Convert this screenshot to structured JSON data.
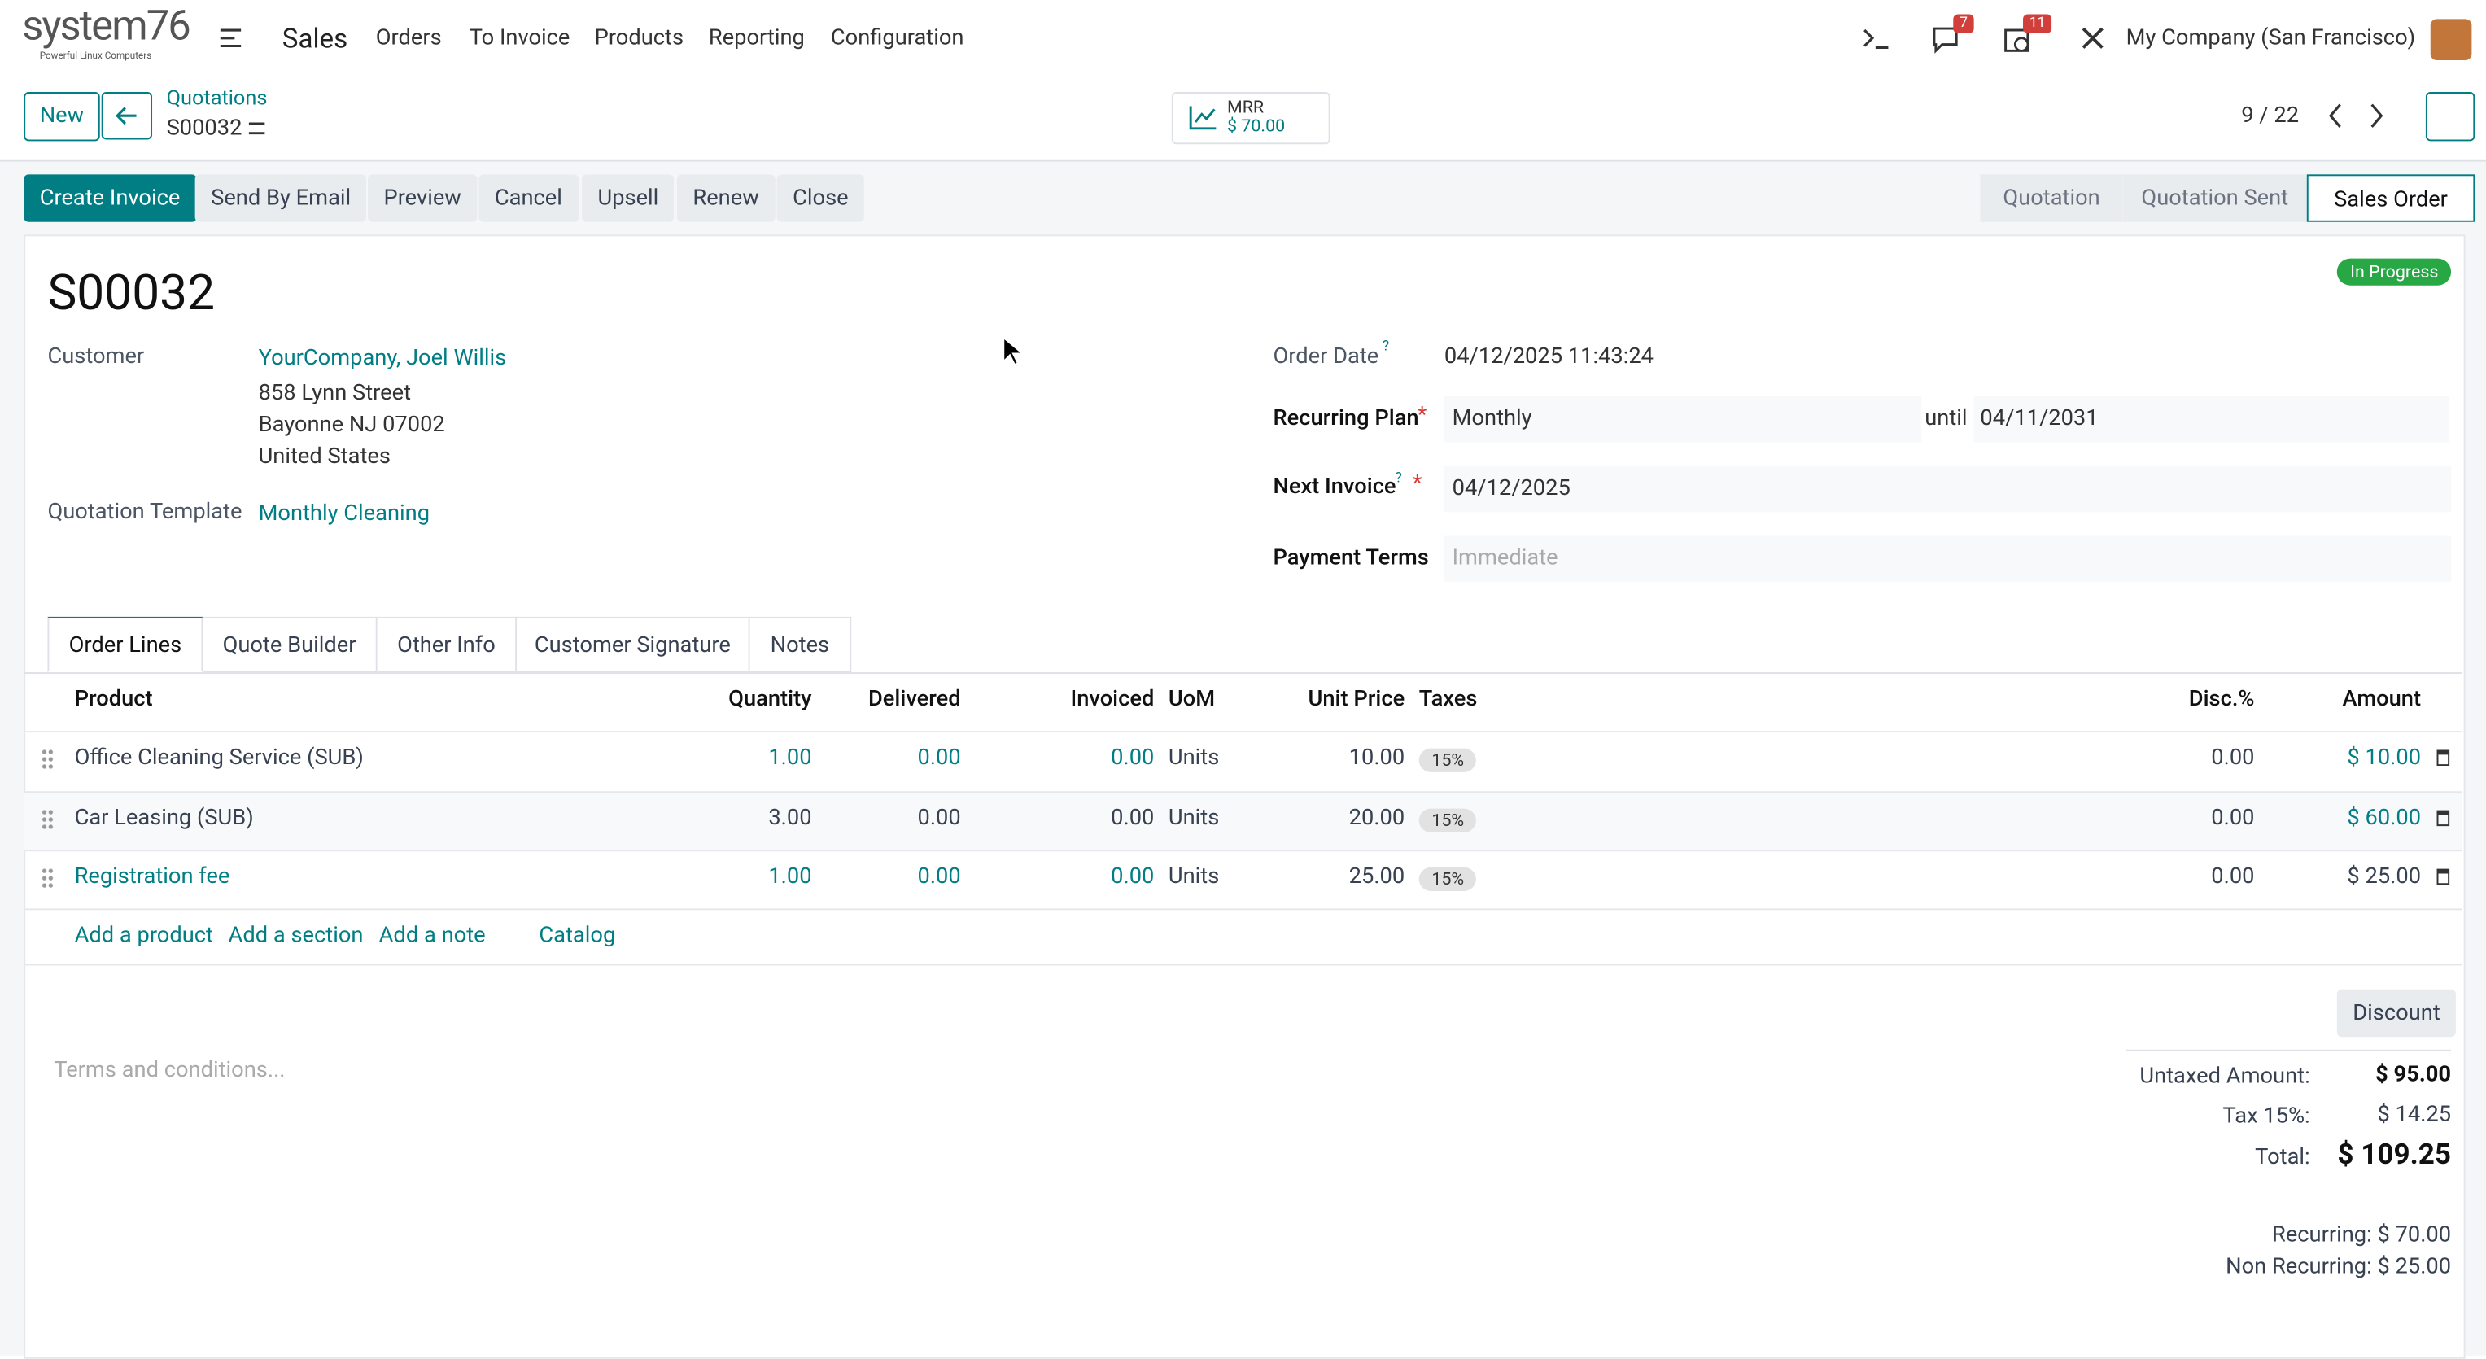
{
  "navbar": {
    "brand": "system76",
    "tagline": "Powerful Linux Computers",
    "app": "Sales",
    "menu": [
      "Orders",
      "To Invoice",
      "Products",
      "Reporting",
      "Configuration"
    ],
    "messages_count": "7",
    "activities_count": "11",
    "company": "My Company (San Francisco)"
  },
  "control": {
    "new": "New",
    "breadcrumb": "Quotations",
    "record": "S00032",
    "mrr_label": "MRR",
    "mrr_value": "$ 70.00",
    "pager": "9 / 22"
  },
  "actions": [
    "Create Invoice",
    "Send By Email",
    "Preview",
    "Cancel",
    "Upsell",
    "Renew",
    "Close"
  ],
  "stages": [
    "Quotation",
    "Quotation Sent",
    "Sales Order"
  ],
  "form": {
    "status": "In Progress",
    "name": "S00032",
    "customer_label": "Customer",
    "customer": "YourCompany, Joel Willis",
    "address": [
      "858 Lynn Street",
      "Bayonne NJ 07002",
      "United States"
    ],
    "template_label": "Quotation Template",
    "template": "Monthly Cleaning",
    "order_date_label": "Order Date",
    "order_date": "04/12/2025 11:43:24",
    "plan_label": "Recurring Plan",
    "plan": "Monthly",
    "until_label": "until",
    "until": "04/11/2031",
    "next_label": "Next Invoice",
    "next": "04/12/2025",
    "terms_label": "Payment Terms",
    "terms_placeholder": "Immediate",
    "help_mark": "?",
    "required_mark": "*"
  },
  "tabs": [
    "Order Lines",
    "Quote Builder",
    "Other Info",
    "Customer Signature",
    "Notes"
  ],
  "table": {
    "headers": [
      "Product",
      "Quantity",
      "Delivered",
      "Invoiced",
      "UoM",
      "Unit Price",
      "Taxes",
      "Disc.%",
      "Amount"
    ],
    "rows": [
      [
        "Office Cleaning Service (SUB)",
        "1.00",
        "0.00",
        "0.00",
        "Units",
        "10.00",
        "15%",
        "0.00",
        "$ 10.00"
      ],
      [
        "Car Leasing (SUB)",
        "3.00",
        "0.00",
        "0.00",
        "Units",
        "20.00",
        "15%",
        "0.00",
        "$ 60.00"
      ],
      [
        "Registration fee",
        "1.00",
        "0.00",
        "0.00",
        "Units",
        "25.00",
        "15%",
        "0.00",
        "$ 25.00"
      ]
    ],
    "links": [
      "Add a product",
      "Add a section",
      "Add a note",
      "Catalog"
    ]
  },
  "footer": {
    "discount": "Discount",
    "terms_placeholder": "Terms and conditions...",
    "totals": [
      [
        "Untaxed Amount:",
        "$ 95.00"
      ],
      [
        "Tax 15%:",
        "$ 14.25"
      ],
      [
        "Total:",
        "$ 109.25"
      ]
    ],
    "recurring": "Recurring: $ 70.00",
    "non_recurring": "Non Recurring: $ 25.00"
  }
}
